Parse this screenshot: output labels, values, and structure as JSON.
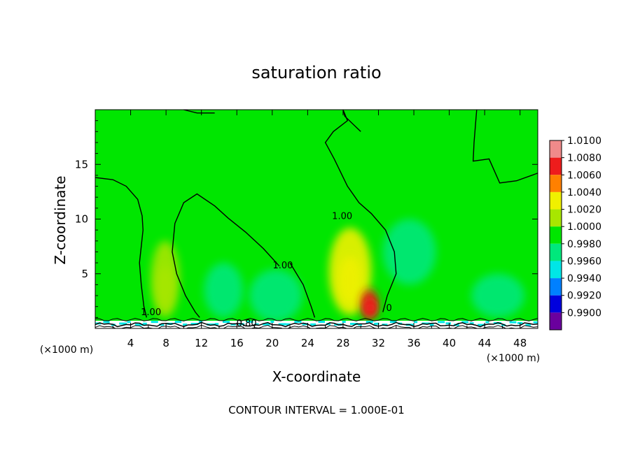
{
  "chart_data": {
    "type": "heatmap",
    "title": "saturation ratio",
    "xlabel": "X-coordinate",
    "ylabel": "Z-coordinate",
    "x_unit_left": "(×1000 m)",
    "x_unit_right": "(×1000 m)",
    "footer": "CONTOUR INTERVAL = 1.000E-01",
    "xlim": [
      0,
      50
    ],
    "ylim": [
      0,
      20
    ],
    "x_ticks": [
      4,
      8,
      12,
      16,
      20,
      24,
      28,
      32,
      36,
      40,
      44,
      48
    ],
    "x_tick_labels": [
      "4",
      "8",
      "12",
      "16",
      "20",
      "24",
      "28",
      "32",
      "36",
      "40",
      "44",
      "48"
    ],
    "y_ticks": [
      5,
      10,
      15
    ],
    "y_tick_labels": [
      "5",
      "10",
      "15"
    ],
    "colorbar": {
      "levels": [
        "1.0100",
        "1.0080",
        "1.0060",
        "1.0040",
        "1.0020",
        "1.0000",
        "0.9980",
        "0.9960",
        "0.9940",
        "0.9920",
        "0.9900"
      ],
      "colors": [
        "#f08a8a",
        "#ee1c1c",
        "#ff8000",
        "#f0f000",
        "#a8e600",
        "#00e600",
        "#00e87c",
        "#00e6e6",
        "#0080ff",
        "#0000dd",
        "#6a009e"
      ]
    },
    "background_value": 1.0,
    "contour_labels": [
      {
        "text": "1.00",
        "x": 27.9,
        "z": 10
      },
      {
        "text": "1.00",
        "x": 21.2,
        "z": 5.5
      },
      {
        "text": "1.00",
        "x": 6.3,
        "z": 1.2
      },
      {
        "text": "0.80",
        "x": 17.1,
        "z": 0.2
      },
      {
        "text": "0",
        "x": 33.2,
        "z": 1.6
      }
    ],
    "highlights": [
      {
        "x": 7.9,
        "z": 4.5,
        "value": 1.003,
        "rx": 1.6,
        "rz": 3.5
      },
      {
        "x": 28.8,
        "z": 5.2,
        "value": 1.004,
        "rx": 2.4,
        "rz": 4.0
      },
      {
        "x": 31.0,
        "z": 2.2,
        "value": 1.008,
        "rx": 1.0,
        "rz": 1.4
      },
      {
        "x": 20.4,
        "z": 3.0,
        "value": 0.999,
        "rx": 3.0,
        "rz": 2.4
      },
      {
        "x": 14.5,
        "z": 3.5,
        "value": 0.999,
        "rx": 2.2,
        "rz": 2.5
      },
      {
        "x": 35.5,
        "z": 7.0,
        "value": 0.9995,
        "rx": 3.0,
        "rz": 3.0
      },
      {
        "x": 45.5,
        "z": 3.0,
        "value": 0.999,
        "rx": 3.0,
        "rz": 2.0
      }
    ]
  }
}
